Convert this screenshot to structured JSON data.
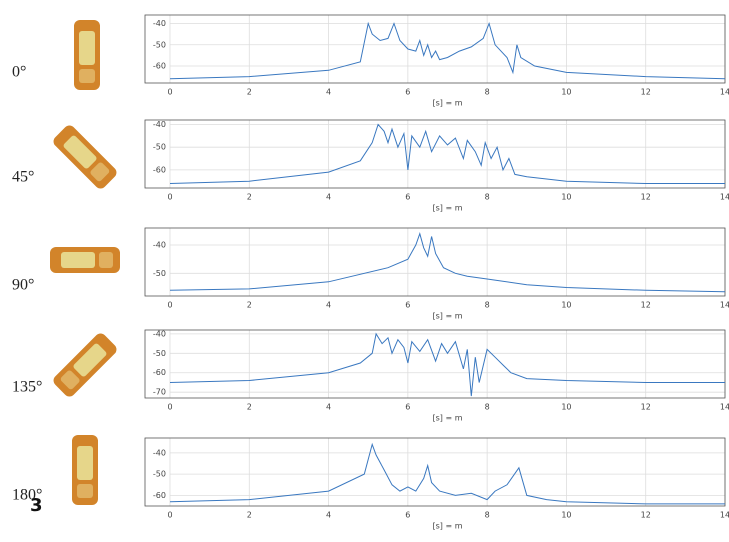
{
  "figure_label": "3",
  "chart_data": [
    {
      "type": "line",
      "title": "0°",
      "x_label": "[s] = m",
      "color": "#3a78c0",
      "grid": true,
      "xlim": [
        0,
        14
      ],
      "xticks": [
        0,
        2,
        4,
        6,
        8,
        10,
        12,
        14
      ],
      "ylim": [
        -68,
        -36
      ],
      "yticks": [
        -40,
        -50,
        -60
      ],
      "x": [
        0,
        2,
        4,
        4.8,
        5.0,
        5.1,
        5.3,
        5.5,
        5.65,
        5.8,
        6.0,
        6.2,
        6.3,
        6.4,
        6.5,
        6.6,
        6.7,
        6.8,
        7.0,
        7.3,
        7.6,
        7.9,
        8.05,
        8.2,
        8.5,
        8.65,
        8.75,
        8.85,
        9.2,
        10,
        12,
        14
      ],
      "values": [
        -66,
        -65,
        -62,
        -58,
        -40,
        -45,
        -48,
        -47,
        -40,
        -48,
        -52,
        -53,
        -48,
        -55,
        -50,
        -56,
        -53,
        -57,
        -56,
        -53,
        -51,
        -47,
        -40,
        -50,
        -56,
        -63,
        -50,
        -56,
        -60,
        -63,
        -65,
        -66
      ]
    },
    {
      "type": "line",
      "title": "45°",
      "x_label": "[s] = m",
      "color": "#3a78c0",
      "grid": true,
      "xlim": [
        0,
        14
      ],
      "xticks": [
        0,
        2,
        4,
        6,
        8,
        10,
        12,
        14
      ],
      "ylim": [
        -68,
        -38
      ],
      "yticks": [
        -40,
        -50,
        -60
      ],
      "x": [
        0,
        2,
        4,
        4.8,
        5.1,
        5.25,
        5.4,
        5.5,
        5.6,
        5.75,
        5.9,
        6.0,
        6.1,
        6.3,
        6.45,
        6.6,
        6.8,
        7.0,
        7.2,
        7.4,
        7.5,
        7.7,
        7.85,
        7.95,
        8.1,
        8.25,
        8.4,
        8.55,
        8.7,
        9,
        10,
        12,
        14
      ],
      "values": [
        -66,
        -65,
        -61,
        -56,
        -48,
        -40,
        -43,
        -48,
        -42,
        -50,
        -44,
        -60,
        -45,
        -50,
        -43,
        -52,
        -45,
        -49,
        -46,
        -55,
        -47,
        -52,
        -58,
        -48,
        -55,
        -50,
        -60,
        -55,
        -62,
        -63,
        -65,
        -66,
        -66
      ]
    },
    {
      "type": "line",
      "title": "90°",
      "x_label": "[s] = m",
      "color": "#3a78c0",
      "grid": true,
      "xlim": [
        0,
        14
      ],
      "xticks": [
        0,
        2,
        4,
        6,
        8,
        10,
        12,
        14
      ],
      "ylim": [
        -58,
        -34
      ],
      "yticks": [
        -40,
        -50
      ],
      "x": [
        0,
        2,
        4,
        5.5,
        6.0,
        6.2,
        6.3,
        6.4,
        6.5,
        6.6,
        6.7,
        6.9,
        7.2,
        7.5,
        8,
        9,
        10,
        12,
        14
      ],
      "values": [
        -56,
        -55.5,
        -53,
        -48,
        -45,
        -40,
        -36,
        -41,
        -44,
        -37,
        -43,
        -48,
        -50,
        -51,
        -52,
        -54,
        -55,
        -56,
        -56.5
      ]
    },
    {
      "type": "line",
      "title": "135°",
      "x_label": "[s] = m",
      "color": "#3a78c0",
      "grid": true,
      "xlim": [
        0,
        14
      ],
      "xticks": [
        0,
        2,
        4,
        6,
        8,
        10,
        12,
        14
      ],
      "ylim": [
        -73,
        -38
      ],
      "yticks": [
        -40,
        -50,
        -60,
        -70
      ],
      "x": [
        0,
        2,
        4,
        4.8,
        5.1,
        5.2,
        5.35,
        5.5,
        5.6,
        5.75,
        5.9,
        6.0,
        6.1,
        6.3,
        6.5,
        6.7,
        6.85,
        7.0,
        7.2,
        7.4,
        7.5,
        7.6,
        7.7,
        7.8,
        8.0,
        8.2,
        8.4,
        8.6,
        9,
        10,
        12,
        14
      ],
      "values": [
        -65,
        -64,
        -60,
        -55,
        -50,
        -40,
        -45,
        -42,
        -50,
        -43,
        -47,
        -55,
        -44,
        -49,
        -43,
        -54,
        -45,
        -50,
        -44,
        -58,
        -48,
        -72,
        -52,
        -65,
        -48,
        -52,
        -56,
        -60,
        -63,
        -64,
        -65,
        -65
      ]
    },
    {
      "type": "line",
      "title": "180°",
      "x_label": "[s] = m",
      "color": "#3a78c0",
      "grid": true,
      "xlim": [
        0,
        14
      ],
      "xticks": [
        0,
        2,
        4,
        6,
        8,
        10,
        12,
        14
      ],
      "ylim": [
        -65,
        -33
      ],
      "yticks": [
        -40,
        -50,
        -60
      ],
      "x": [
        0,
        2,
        4,
        4.9,
        5.1,
        5.2,
        5.4,
        5.6,
        5.8,
        6.0,
        6.2,
        6.4,
        6.5,
        6.6,
        6.8,
        7.2,
        7.6,
        8.0,
        8.2,
        8.5,
        8.8,
        9.0,
        9.5,
        10,
        12,
        14
      ],
      "values": [
        -63,
        -62,
        -58,
        -50,
        -36,
        -41,
        -48,
        -55,
        -58,
        -56,
        -58,
        -52,
        -46,
        -54,
        -58,
        -60,
        -59,
        -62,
        -58,
        -55,
        -47,
        -60,
        -62,
        -63,
        -64,
        -64
      ]
    }
  ]
}
